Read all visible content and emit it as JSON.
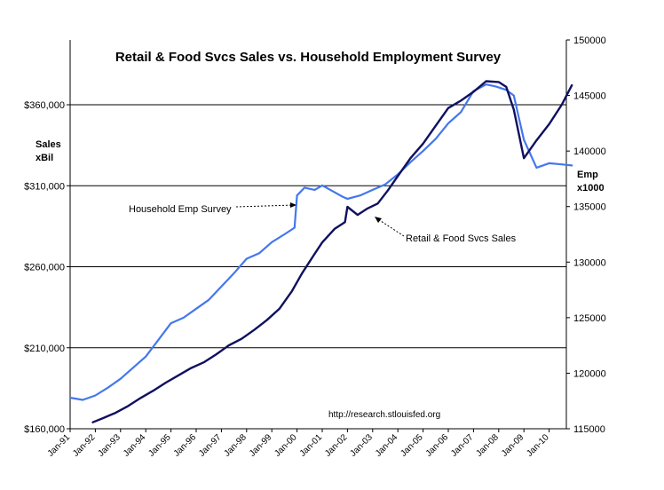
{
  "chart_data": {
    "type": "line",
    "title": "Retail & Food Svcs Sales vs. Household Employment Survey",
    "ylabel_left": [
      "Sales",
      "xBil"
    ],
    "ylabel_right": [
      "Emp",
      "x1000"
    ],
    "source_note": "http://research.stlouisfed.org",
    "x_ticks": [
      "Jan-91",
      "Jan-92",
      "Jan-93",
      "Jan-94",
      "Jan-95",
      "Jan-96",
      "Jan-97",
      "Jan-98",
      "Jan-99",
      "Jan-00",
      "Jan-01",
      "Jan-02",
      "Jan-03",
      "Jan-04",
      "Jan-05",
      "Jan-06",
      "Jan-07",
      "Jan-08",
      "Jan-09",
      "Jan-10"
    ],
    "y_left": {
      "min": 160000,
      "max": 400000,
      "ticks": [
        160000,
        210000,
        260000,
        310000,
        360000
      ],
      "tick_labels": [
        "$160,000",
        "$210,000",
        "$260,000",
        "$310,000",
        "$360,000"
      ]
    },
    "y_right": {
      "min": 115000,
      "max": 150000,
      "ticks": [
        115000,
        120000,
        125000,
        130000,
        135000,
        140000,
        145000,
        150000
      ],
      "tick_labels": [
        "115000",
        "120000",
        "125000",
        "130000",
        "135000",
        "140000",
        "145000",
        "150000"
      ]
    },
    "gridlines": [
      160000,
      210000,
      260000,
      310000,
      360000
    ],
    "annotations": [
      {
        "text": "Household Emp Survey",
        "series": "emp"
      },
      {
        "text": "Retail & Food Svcs Sales",
        "series": "sales"
      }
    ],
    "series": [
      {
        "key": "emp",
        "axis": "right",
        "color": "#4477ee",
        "x": [
          1991.0,
          1991.5,
          1992.0,
          1992.5,
          1993.0,
          1993.5,
          1994.0,
          1994.5,
          1995.0,
          1995.5,
          1996.0,
          1996.5,
          1997.0,
          1997.5,
          1998.0,
          1998.5,
          1999.0,
          1999.5,
          1999.9,
          2000.0,
          2000.3,
          2000.7,
          2001.0,
          2001.4,
          2001.8,
          2002.0,
          2002.5,
          2003.0,
          2003.5,
          2004.0,
          2004.5,
          2005.0,
          2005.5,
          2006.0,
          2006.5,
          2007.0,
          2007.5,
          2007.9,
          2008.3,
          2008.6,
          2009.0,
          2009.5,
          2010.0,
          2010.5,
          2010.9
        ],
        "values": [
          117800,
          117600,
          118000,
          118700,
          119500,
          120500,
          121500,
          123000,
          124500,
          125000,
          125800,
          126600,
          127800,
          129000,
          130300,
          130800,
          131800,
          132500,
          133100,
          136000,
          136700,
          136500,
          136900,
          136400,
          135900,
          135700,
          136000,
          136500,
          137000,
          137900,
          139000,
          140000,
          141100,
          142500,
          143500,
          145400,
          146000,
          145800,
          145500,
          145000,
          141000,
          138500,
          138900,
          138800,
          138700
        ]
      },
      {
        "key": "sales",
        "axis": "left",
        "color": "#101060",
        "x": [
          1991.9,
          1992.3,
          1992.8,
          1993.3,
          1993.8,
          1994.3,
          1994.8,
          1995.3,
          1995.8,
          1996.3,
          1996.8,
          1997.3,
          1997.8,
          1998.3,
          1998.8,
          1999.3,
          1999.8,
          2000.2,
          2000.7,
          2001.0,
          2001.5,
          2001.9,
          2002.0,
          2002.4,
          2002.8,
          2003.2,
          2003.6,
          2004.0,
          2004.5,
          2005.0,
          2005.5,
          2006.0,
          2006.5,
          2007.0,
          2007.5,
          2008.0,
          2008.3,
          2008.6,
          2009.0,
          2009.5,
          2010.0,
          2010.5,
          2010.9
        ],
        "values": [
          164000,
          166500,
          169800,
          174000,
          179000,
          183500,
          188500,
          193000,
          197500,
          201000,
          206000,
          211500,
          215500,
          221000,
          227000,
          234000,
          245000,
          256000,
          268000,
          275000,
          283500,
          287500,
          297000,
          292000,
          296000,
          299000,
          307000,
          316000,
          327000,
          336000,
          347000,
          358000,
          362500,
          368000,
          374500,
          374000,
          371000,
          357000,
          327000,
          338000,
          348000,
          360000,
          372000
        ]
      }
    ]
  }
}
